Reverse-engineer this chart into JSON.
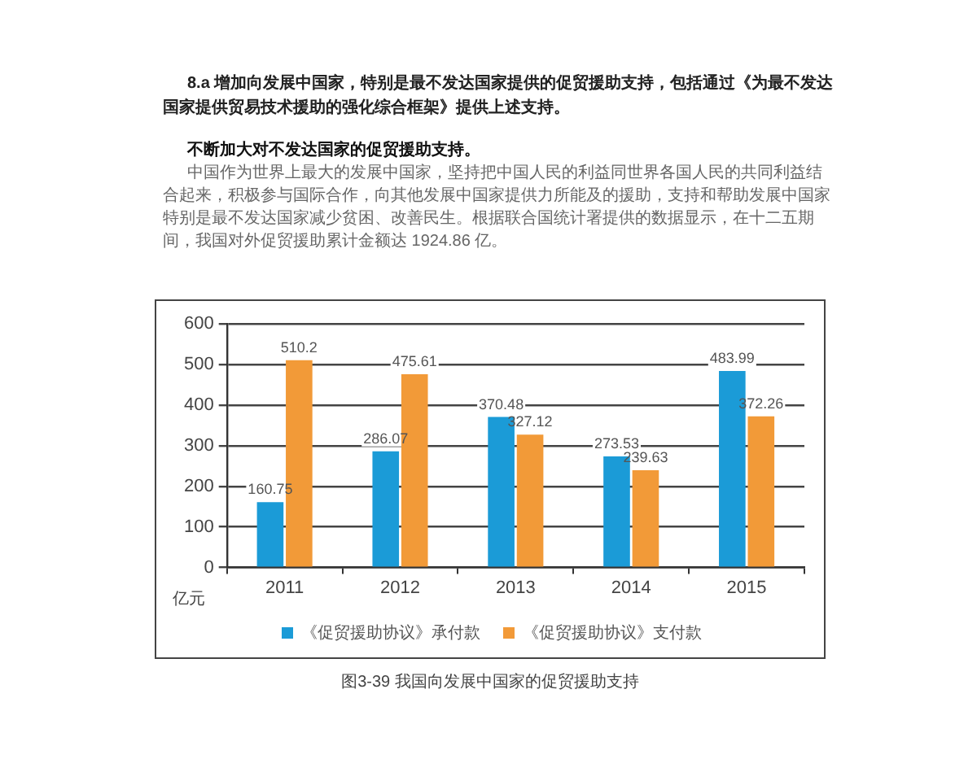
{
  "chart_data": {
    "type": "bar",
    "title": "8.a 增加向发展中国家，特别是最不发达国家提供的促贸援助支持，包括通过《为最不发达国家提供贸易技术援助的强化综合框架》提供上述支持。",
    "subtitle": "不断加大对不发达国家的促贸援助支持。",
    "annotations": [
      "中国作为世界上最大的发展中国家，坚持把中国人民的利益同世界各国人民的共同利益结合起来，积极参与国际合作，向其他发展中国家提供力所能及的援助，支持和帮助发展中国家特别是最不发达国家减少贫困、改善民生。根据联合国统计署提供的数据显示，在十二五期间，我国对外促贸援助累计金额达 1924.86 亿。",
      "图3-39 我国向发展中国家的促贸援助支持"
    ],
    "ylabel": "亿元",
    "categories": [
      "2011",
      "2012",
      "2013",
      "2014",
      "2015"
    ],
    "series": [
      {
        "name": "《促贸援助协议》承付款",
        "color": "#1b9bd7",
        "values": [
          160.75,
          286.07,
          370.48,
          273.53,
          483.99
        ]
      },
      {
        "name": "《促贸援助协议》支付款",
        "color": "#f29a38",
        "values": [
          510.2,
          475.61,
          327.12,
          239.63,
          372.26
        ]
      }
    ],
    "ylim": [
      0,
      600
    ],
    "yticks": [
      0,
      100,
      200,
      300,
      400,
      500,
      600
    ],
    "grid": "y",
    "legend": "bottom",
    "data_labels": true
  }
}
